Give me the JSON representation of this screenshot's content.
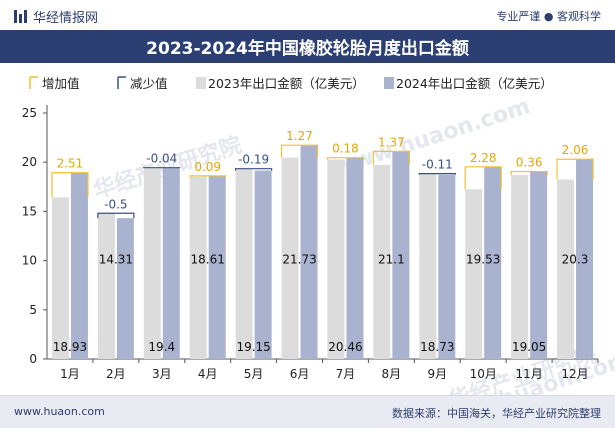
{
  "header": {
    "brand": "华经情报网",
    "tags": "专业严谨 ● 客观科学"
  },
  "title": "2023-2024年中国橡胶轮胎月度出口金额",
  "footer": {
    "website": "www.huaon.com",
    "source": "数据来源：中国海关，华经产业研究院整理"
  },
  "watermarks": [
    "华经产业研究院",
    "www.huaon.com",
    "华经产业研究院",
    "www.huaon.com"
  ],
  "colors": {
    "bar2023": "#dcdcdc",
    "bar2024": "#a9b2cf",
    "increase": "#f2c12e",
    "decrease": "#3b4f86",
    "title_bg": "#2c3f72"
  },
  "chart_data": {
    "type": "bar",
    "categories": [
      "1月",
      "2月",
      "3月",
      "4月",
      "5月",
      "6月",
      "7月",
      "8月",
      "9月",
      "10月",
      "11月",
      "12月"
    ],
    "series": [
      {
        "name": "增加值",
        "values": [
          2.51,
          null,
          null,
          0.09,
          null,
          1.27,
          0.18,
          1.37,
          null,
          2.28,
          0.36,
          2.06
        ]
      },
      {
        "name": "减少值",
        "values": [
          null,
          -0.5,
          -0.04,
          null,
          -0.19,
          null,
          null,
          null,
          -0.11,
          null,
          null,
          null
        ]
      },
      {
        "name": "2023年出口金额（亿美元）",
        "values": [
          16.42,
          14.81,
          19.44,
          18.52,
          19.34,
          20.46,
          20.28,
          19.73,
          18.84,
          17.25,
          18.69,
          18.24
        ]
      },
      {
        "name": "2024年出口金额（亿美元）",
        "values": [
          18.93,
          14.31,
          19.4,
          18.61,
          19.15,
          21.73,
          20.46,
          21.1,
          18.73,
          19.53,
          19.05,
          20.3
        ]
      }
    ],
    "change_labels": [
      "2.51",
      "-0.5",
      "-0.04",
      "0.09",
      "-0.19",
      "1.27",
      "0.18",
      "1.37",
      "-0.11",
      "2.28",
      "0.36",
      "2.06"
    ],
    "value_labels_2024": [
      "18.93",
      "14.31",
      "19.4",
      "18.61",
      "19.15",
      "21.73",
      "20.46",
      "21.1",
      "18.73",
      "19.53",
      "19.05",
      "20.3"
    ],
    "y_ticks": [
      "0",
      "5",
      "10",
      "15",
      "20",
      "25"
    ],
    "ylim": [
      0,
      25
    ],
    "grid": false,
    "legend_position": "top-left"
  }
}
